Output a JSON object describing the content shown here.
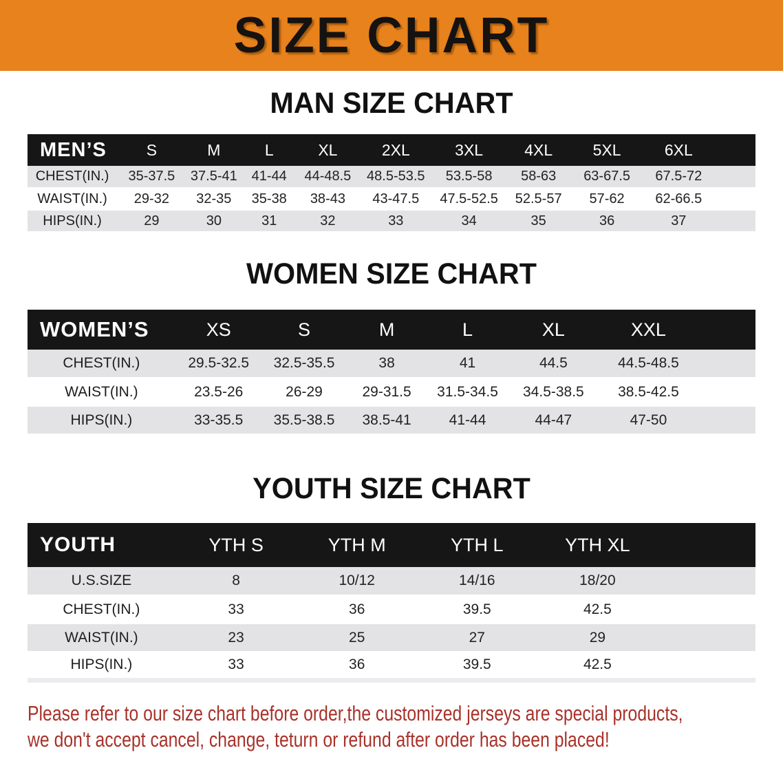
{
  "banner": {
    "title": "SIZE CHART",
    "bg_color": "#E8821C"
  },
  "sections": [
    {
      "title": "MAN SIZE CHART",
      "header_label": "MEN’S",
      "columns": [
        "S",
        "M",
        "L",
        "XL",
        "2XL",
        "3XL",
        "4XL",
        "5XL",
        "6XL"
      ],
      "rows": [
        {
          "label": "CHEST(IN.)",
          "values": [
            "35-37.5",
            "37.5-41",
            "41-44",
            "44-48.5",
            "48.5-53.5",
            "53.5-58",
            "58-63",
            "63-67.5",
            "67.5-72"
          ]
        },
        {
          "label": "WAIST(IN.)",
          "values": [
            "29-32",
            "32-35",
            "35-38",
            "38-43",
            "43-47.5",
            "47.5-52.5",
            "52.5-57",
            "57-62",
            "62-66.5"
          ]
        },
        {
          "label": "HIPS(IN.)",
          "values": [
            "29",
            "30",
            "31",
            "32",
            "33",
            "34",
            "35",
            "36",
            "37"
          ]
        }
      ]
    },
    {
      "title": "WOMEN SIZE CHART",
      "header_label": "WOMEN’S",
      "columns": [
        "XS",
        "S",
        "M",
        "L",
        "XL",
        "XXL"
      ],
      "rows": [
        {
          "label": "CHEST(IN.)",
          "values": [
            "29.5-32.5",
            "32.5-35.5",
            "38",
            "41",
            "44.5",
            "44.5-48.5"
          ]
        },
        {
          "label": "WAIST(IN.)",
          "values": [
            "23.5-26",
            "26-29",
            "29-31.5",
            "31.5-34.5",
            "34.5-38.5",
            "38.5-42.5"
          ]
        },
        {
          "label": "HIPS(IN.)",
          "values": [
            "33-35.5",
            "35.5-38.5",
            "38.5-41",
            "41-44",
            "44-47",
            "47-50"
          ]
        }
      ]
    },
    {
      "title": "YOUTH SIZE CHART",
      "header_label": "YOUTH",
      "columns": [
        "YTH S",
        "YTH M",
        "YTH L",
        "YTH XL"
      ],
      "rows": [
        {
          "label": "U.S.SIZE",
          "values": [
            "8",
            "10/12",
            "14/16",
            "18/20"
          ]
        },
        {
          "label": "CHEST(IN.)",
          "values": [
            "33",
            "36",
            "39.5",
            "42.5"
          ]
        },
        {
          "label": "WAIST(IN.)",
          "values": [
            "23",
            "25",
            "27",
            "29"
          ]
        },
        {
          "label": "HIPS(IN.)",
          "values": [
            "33",
            "36",
            "39.5",
            "42.5"
          ]
        }
      ]
    }
  ],
  "disclaimer": {
    "line1": "Please refer to our size chart before order,the customized jerseys are special products,",
    "line2": "we don't accept cancel, change, teturn or refund after order has been placed!",
    "color": "#A8322A"
  }
}
